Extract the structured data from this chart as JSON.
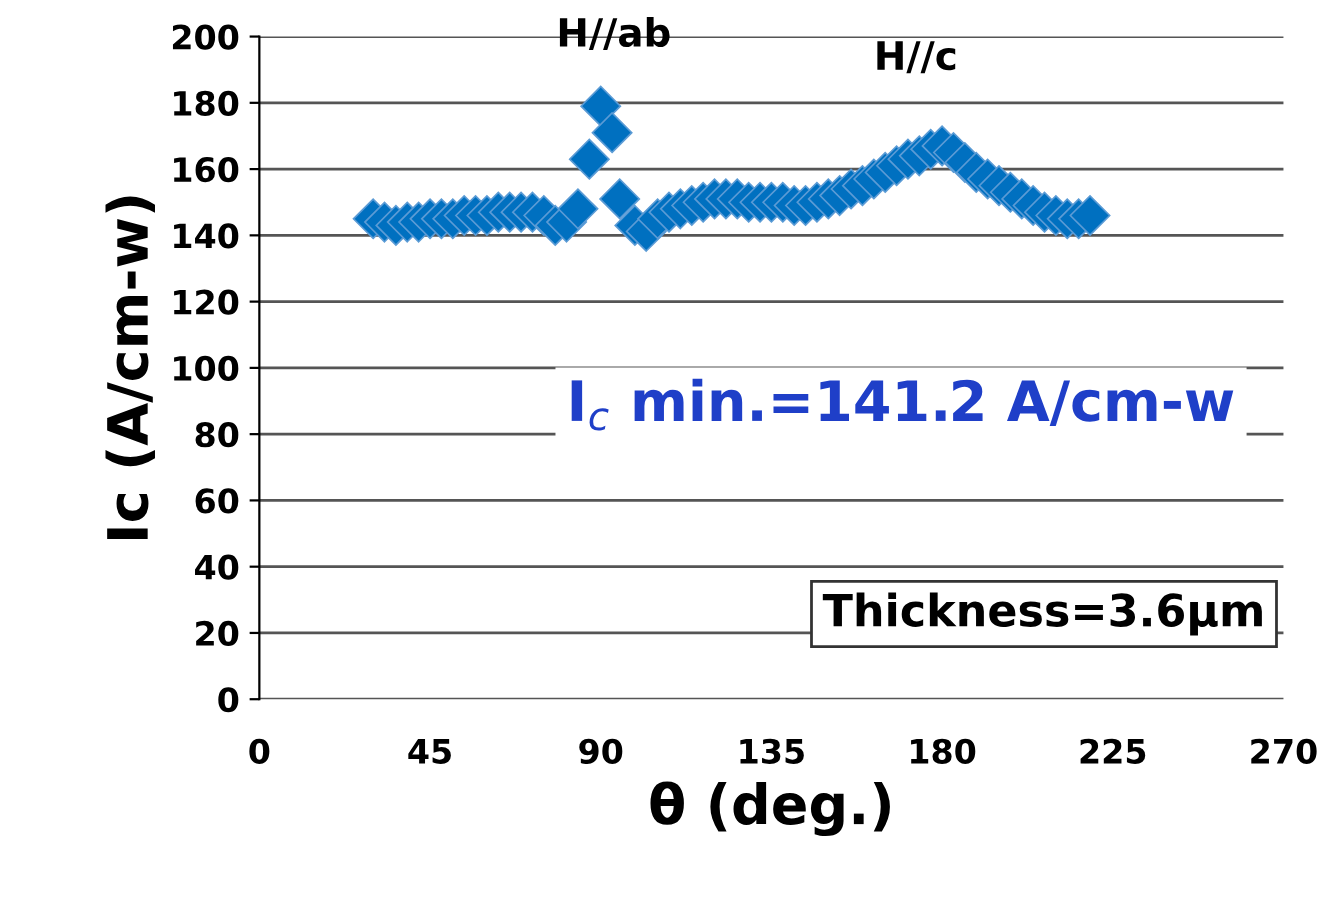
{
  "chart_data": {
    "type": "scatter",
    "xlabel": "θ (deg.)",
    "ylabel": "Ic (A/cm-w)",
    "x": [
      30,
      33,
      36,
      39,
      42,
      45,
      48,
      51,
      54,
      57,
      60,
      63,
      66,
      69,
      72,
      75,
      78,
      81,
      84,
      87,
      90,
      93,
      95,
      99,
      102,
      105,
      108,
      111,
      114,
      117,
      120,
      123,
      126,
      129,
      132,
      135,
      138,
      141,
      144,
      147,
      150,
      153,
      156,
      159,
      162,
      165,
      168,
      171,
      174,
      177,
      180,
      183,
      186,
      189,
      192,
      195,
      198,
      201,
      204,
      207,
      210,
      213,
      216,
      219
    ],
    "values": [
      145,
      144,
      143,
      144,
      144,
      145,
      145,
      145,
      146,
      146,
      146,
      147,
      147,
      147,
      147,
      146,
      143,
      144,
      148,
      163,
      179,
      171,
      151,
      143,
      141.2,
      145,
      147,
      148,
      149,
      150,
      151,
      151,
      151,
      150,
      150,
      150,
      150,
      149,
      149,
      150,
      151,
      152,
      154,
      155,
      157,
      159,
      161,
      163,
      164,
      166,
      167,
      165,
      162,
      159,
      157,
      155,
      153,
      151,
      149,
      147,
      146,
      145,
      145,
      146
    ],
    "color": "#0070c0",
    "marker": "diamond",
    "xlim": [
      0,
      270
    ],
    "xticks": [
      0,
      45,
      90,
      135,
      180,
      225,
      270
    ],
    "ylim": [
      0,
      200
    ],
    "yticks": [
      0,
      20,
      40,
      60,
      80,
      100,
      120,
      140,
      160,
      180,
      200
    ],
    "grid": "y",
    "annotations": [
      "H//ab",
      "H//c",
      "I$_{c}$ min.=141.2 A/cm-w",
      "Thickness=3.6μm"
    ]
  }
}
